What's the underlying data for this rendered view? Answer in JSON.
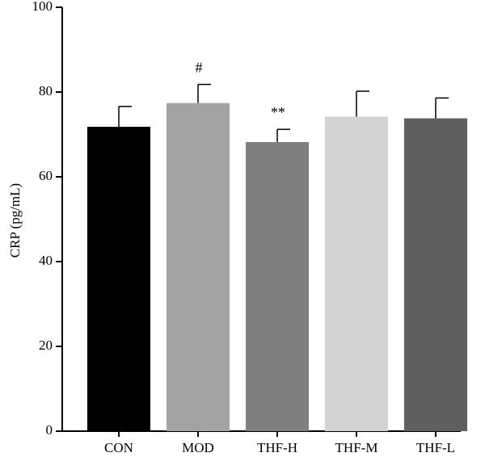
{
  "chart_data": {
    "type": "bar",
    "title": "",
    "xlabel": "",
    "ylabel": "CRP (pg/mL)",
    "ylim": [
      0,
      100
    ],
    "yticks": [
      0,
      20,
      40,
      60,
      80,
      100
    ],
    "grid": false,
    "categories": [
      "CON",
      "MOD",
      "THF-H",
      "THF-M",
      "THF-L"
    ],
    "values": [
      71.8,
      77.4,
      68.2,
      74.2,
      73.8
    ],
    "errors": [
      4.8,
      4.4,
      3.0,
      6.0,
      4.8
    ],
    "annotations": [
      "",
      "#",
      "**",
      "",
      ""
    ],
    "colors": [
      "#000000",
      "#a3a3a3",
      "#7f7f7f",
      "#d3d3d3",
      "#5f5f5f"
    ]
  }
}
